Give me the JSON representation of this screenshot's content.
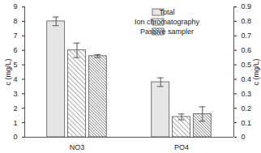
{
  "chart_data": {
    "type": "bar",
    "categories": [
      "NO3",
      "PO4"
    ],
    "y_label": "c (mg/L)",
    "y2_label": "c (mg/L)",
    "ylim": [
      0,
      9
    ],
    "yticks": [
      0,
      1,
      2,
      3,
      4,
      5,
      6,
      7,
      8,
      9
    ],
    "y2lim": [
      0,
      0.9
    ],
    "y2ticks": [
      0,
      0.1,
      0.2,
      0.3,
      0.4,
      0.5,
      0.6,
      0.7,
      0.8,
      0.9
    ],
    "legend": "top-right",
    "series": [
      {
        "name": "Total",
        "color": "#e6e6e6",
        "values": [
          8.0,
          null
        ],
        "errors": [
          0.3,
          null
        ]
      },
      {
        "name": "Ion chromatography",
        "color": "#555555",
        "values": [
          6.0,
          null
        ],
        "errors": [
          0.5,
          null
        ]
      },
      {
        "name": "Passive sampler",
        "color": "#333333",
        "values": [
          5.6,
          null
        ],
        "errors": [
          0.1,
          null
        ]
      },
      {
        "name": "Total",
        "color": "#e6e6e6",
        "axis": "y2",
        "values": [
          null,
          0.38
        ],
        "errors": [
          null,
          0.03
        ]
      },
      {
        "name": "Ion chromatography",
        "color": "#555555",
        "axis": "y2",
        "values": [
          null,
          0.14
        ],
        "errors": [
          null,
          0.02
        ]
      },
      {
        "name": "Passive sampler",
        "color": "#333333",
        "axis": "y2",
        "values": [
          null,
          0.16
        ],
        "errors": [
          null,
          0.05
        ]
      }
    ]
  }
}
